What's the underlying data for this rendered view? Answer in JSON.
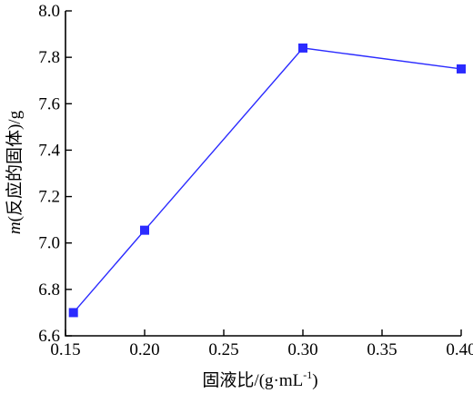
{
  "chart_data": {
    "type": "line",
    "xlabel": {
      "main": "固液比/(g·mL",
      "sup": "-1",
      "close": ")"
    },
    "ylabel": {
      "italic": "m",
      "rest": "(反应的固体)/g"
    },
    "xlim": [
      0.15,
      0.4
    ],
    "ylim": [
      6.6,
      8.0
    ],
    "xticks": [
      0.15,
      0.2,
      0.25,
      0.3,
      0.35,
      0.4
    ],
    "xtick_labels": [
      "0.15",
      "0.20",
      "0.25",
      "0.30",
      "0.35",
      "0.40"
    ],
    "yticks": [
      6.6,
      6.8,
      7.0,
      7.2,
      7.4,
      7.6,
      7.8,
      8.0
    ],
    "ytick_labels": [
      "6.6",
      "6.8",
      "7.0",
      "7.2",
      "7.4",
      "7.6",
      "7.8",
      "8.0"
    ],
    "grid": false,
    "series": [
      {
        "color": "#2b2bff",
        "marker": "square",
        "x": [
          0.155,
          0.2,
          0.3,
          0.4
        ],
        "y": [
          6.7,
          7.055,
          7.84,
          7.75
        ]
      }
    ]
  }
}
